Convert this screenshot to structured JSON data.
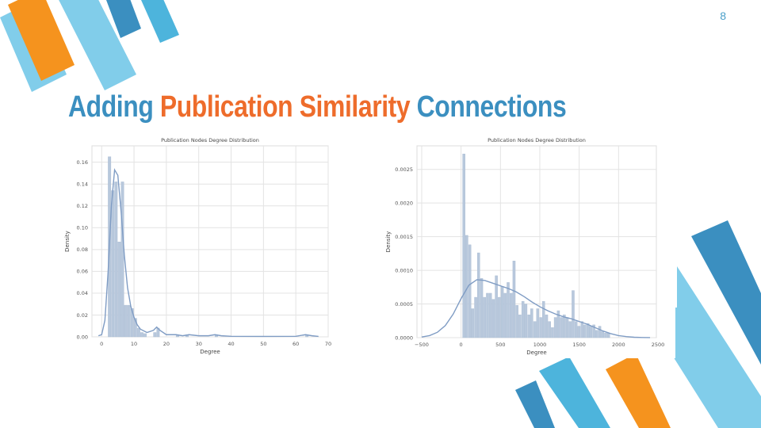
{
  "slide": {
    "page_number": "8",
    "title": {
      "part1": "Adding ",
      "part2": "Publication Similarity",
      "part3": " Connections"
    },
    "colors": {
      "blue_dark": "#3b8fc0",
      "blue_light": "#81cdea",
      "blue_mid": "#4db4dc",
      "orange": "#f5931e",
      "title_orange": "#ee6c2b",
      "bar_fill": "#b8c8dc",
      "kde_line": "#7f9cc4"
    }
  },
  "chart_data": [
    {
      "type": "bar",
      "title": "Publication Nodes Degree Distribution",
      "xlabel": "Degree",
      "ylabel": "Density",
      "xlim": [
        -3,
        70
      ],
      "ylim": [
        0,
        0.175
      ],
      "xticks": [
        0,
        10,
        20,
        30,
        40,
        50,
        60,
        70
      ],
      "yticks": [
        0.0,
        0.02,
        0.04,
        0.06,
        0.08,
        0.1,
        0.12,
        0.14,
        0.16
      ],
      "ytick_labels": [
        "0.00",
        "0.02",
        "0.04",
        "0.06",
        "0.08",
        "0.10",
        "0.12",
        "0.14",
        "0.16"
      ],
      "grid": true,
      "bin_width": 1,
      "bins": [
        {
          "x": 2,
          "y": 0.165
        },
        {
          "x": 3,
          "y": 0.134
        },
        {
          "x": 4,
          "y": 0.142
        },
        {
          "x": 5,
          "y": 0.087
        },
        {
          "x": 6,
          "y": 0.142
        },
        {
          "x": 7,
          "y": 0.029
        },
        {
          "x": 8,
          "y": 0.029
        },
        {
          "x": 9,
          "y": 0.026
        },
        {
          "x": 10,
          "y": 0.017
        },
        {
          "x": 11,
          "y": 0.008
        },
        {
          "x": 12,
          "y": 0.004
        },
        {
          "x": 13,
          "y": 0.003
        },
        {
          "x": 16,
          "y": 0.004
        },
        {
          "x": 17,
          "y": 0.008
        },
        {
          "x": 23,
          "y": 0.002
        },
        {
          "x": 26,
          "y": 0.002
        },
        {
          "x": 35,
          "y": 0.002
        },
        {
          "x": 63,
          "y": 0.002
        }
      ],
      "kde": [
        [
          -1,
          0.001
        ],
        [
          0,
          0.002
        ],
        [
          1,
          0.015
        ],
        [
          2,
          0.06
        ],
        [
          3,
          0.12
        ],
        [
          4,
          0.153
        ],
        [
          5,
          0.148
        ],
        [
          6,
          0.115
        ],
        [
          7,
          0.075
        ],
        [
          8,
          0.045
        ],
        [
          9,
          0.028
        ],
        [
          10,
          0.018
        ],
        [
          11,
          0.011
        ],
        [
          12,
          0.007
        ],
        [
          14,
          0.004
        ],
        [
          16,
          0.006
        ],
        [
          17,
          0.009
        ],
        [
          18,
          0.006
        ],
        [
          20,
          0.002
        ],
        [
          23,
          0.002
        ],
        [
          25,
          0.001
        ],
        [
          27,
          0.002
        ],
        [
          30,
          0.001
        ],
        [
          33,
          0.001
        ],
        [
          35,
          0.002
        ],
        [
          37,
          0.001
        ],
        [
          40,
          0.0005
        ],
        [
          50,
          0.0004
        ],
        [
          60,
          0.0005
        ],
        [
          63,
          0.002
        ],
        [
          65,
          0.001
        ],
        [
          67,
          0.0004
        ]
      ]
    },
    {
      "type": "bar",
      "title": "Publication Nodes Degree Distribution",
      "xlabel": "Degree",
      "ylabel": "Density",
      "xlim": [
        -560,
        2480
      ],
      "ylim": [
        0,
        0.00285
      ],
      "xticks": [
        -500,
        0,
        500,
        1000,
        1500,
        2000,
        2500
      ],
      "xtick_labels": [
        "−500",
        "0",
        "500",
        "1000",
        "1500",
        "2000",
        "2500"
      ],
      "yticks": [
        0,
        0.0005,
        0.001,
        0.0015,
        0.002,
        0.0025
      ],
      "ytick_labels": [
        "0.0000",
        "0.0005",
        "0.0010",
        "0.0015",
        "0.0020",
        "0.0025"
      ],
      "grid": true,
      "bin_width": 37.5,
      "bins": [
        {
          "x": 20,
          "y": 0.00273
        },
        {
          "x": 57,
          "y": 0.00152
        },
        {
          "x": 95,
          "y": 0.00138
        },
        {
          "x": 132,
          "y": 0.00043
        },
        {
          "x": 170,
          "y": 0.0006
        },
        {
          "x": 207,
          "y": 0.00126
        },
        {
          "x": 245,
          "y": 0.00088
        },
        {
          "x": 282,
          "y": 0.0006
        },
        {
          "x": 320,
          "y": 0.00066
        },
        {
          "x": 357,
          "y": 0.00066
        },
        {
          "x": 395,
          "y": 0.00057
        },
        {
          "x": 432,
          "y": 0.00092
        },
        {
          "x": 470,
          "y": 0.0006
        },
        {
          "x": 507,
          "y": 0.00076
        },
        {
          "x": 545,
          "y": 0.00066
        },
        {
          "x": 582,
          "y": 0.00082
        },
        {
          "x": 620,
          "y": 0.00066
        },
        {
          "x": 657,
          "y": 0.00114
        },
        {
          "x": 695,
          "y": 0.00048
        },
        {
          "x": 732,
          "y": 0.00034
        },
        {
          "x": 770,
          "y": 0.00054
        },
        {
          "x": 807,
          "y": 0.0005
        },
        {
          "x": 845,
          "y": 0.00034
        },
        {
          "x": 882,
          "y": 0.00043
        },
        {
          "x": 920,
          "y": 0.00024
        },
        {
          "x": 957,
          "y": 0.00043
        },
        {
          "x": 995,
          "y": 0.0003
        },
        {
          "x": 1032,
          "y": 0.00054
        },
        {
          "x": 1070,
          "y": 0.00034
        },
        {
          "x": 1107,
          "y": 0.00024
        },
        {
          "x": 1145,
          "y": 0.00015
        },
        {
          "x": 1182,
          "y": 0.0003
        },
        {
          "x": 1220,
          "y": 0.0004
        },
        {
          "x": 1257,
          "y": 0.0003
        },
        {
          "x": 1295,
          "y": 0.00034
        },
        {
          "x": 1332,
          "y": 0.0003
        },
        {
          "x": 1370,
          "y": 0.00024
        },
        {
          "x": 1407,
          "y": 0.0007
        },
        {
          "x": 1445,
          "y": 0.00024
        },
        {
          "x": 1482,
          "y": 0.00017
        },
        {
          "x": 1520,
          "y": 0.00024
        },
        {
          "x": 1557,
          "y": 0.00019
        },
        {
          "x": 1595,
          "y": 0.00021
        },
        {
          "x": 1632,
          "y": 0.00017
        },
        {
          "x": 1670,
          "y": 0.00019
        },
        {
          "x": 1707,
          "y": 0.00011
        },
        {
          "x": 1745,
          "y": 0.00017
        },
        {
          "x": 1782,
          "y": 9e-05
        },
        {
          "x": 1820,
          "y": 7e-05
        },
        {
          "x": 1857,
          "y": 7e-05
        }
      ],
      "kde": [
        [
          -500,
          1e-05
        ],
        [
          -400,
          3e-05
        ],
        [
          -300,
          8e-05
        ],
        [
          -200,
          0.00018
        ],
        [
          -100,
          0.00035
        ],
        [
          0,
          0.00058
        ],
        [
          100,
          0.00078
        ],
        [
          200,
          0.00086
        ],
        [
          300,
          0.00085
        ],
        [
          400,
          0.00081
        ],
        [
          500,
          0.00077
        ],
        [
          600,
          0.00073
        ],
        [
          700,
          0.00068
        ],
        [
          800,
          0.00061
        ],
        [
          900,
          0.00053
        ],
        [
          1000,
          0.00046
        ],
        [
          1100,
          0.0004
        ],
        [
          1200,
          0.00035
        ],
        [
          1300,
          0.00031
        ],
        [
          1400,
          0.00028
        ],
        [
          1500,
          0.00024
        ],
        [
          1600,
          0.0002
        ],
        [
          1700,
          0.00015
        ],
        [
          1800,
          0.0001
        ],
        [
          1900,
          6e-05
        ],
        [
          2000,
          3e-05
        ],
        [
          2100,
          1.5e-05
        ],
        [
          2200,
          6e-06
        ],
        [
          2300,
          2e-06
        ],
        [
          2400,
          5e-07
        ]
      ]
    }
  ]
}
